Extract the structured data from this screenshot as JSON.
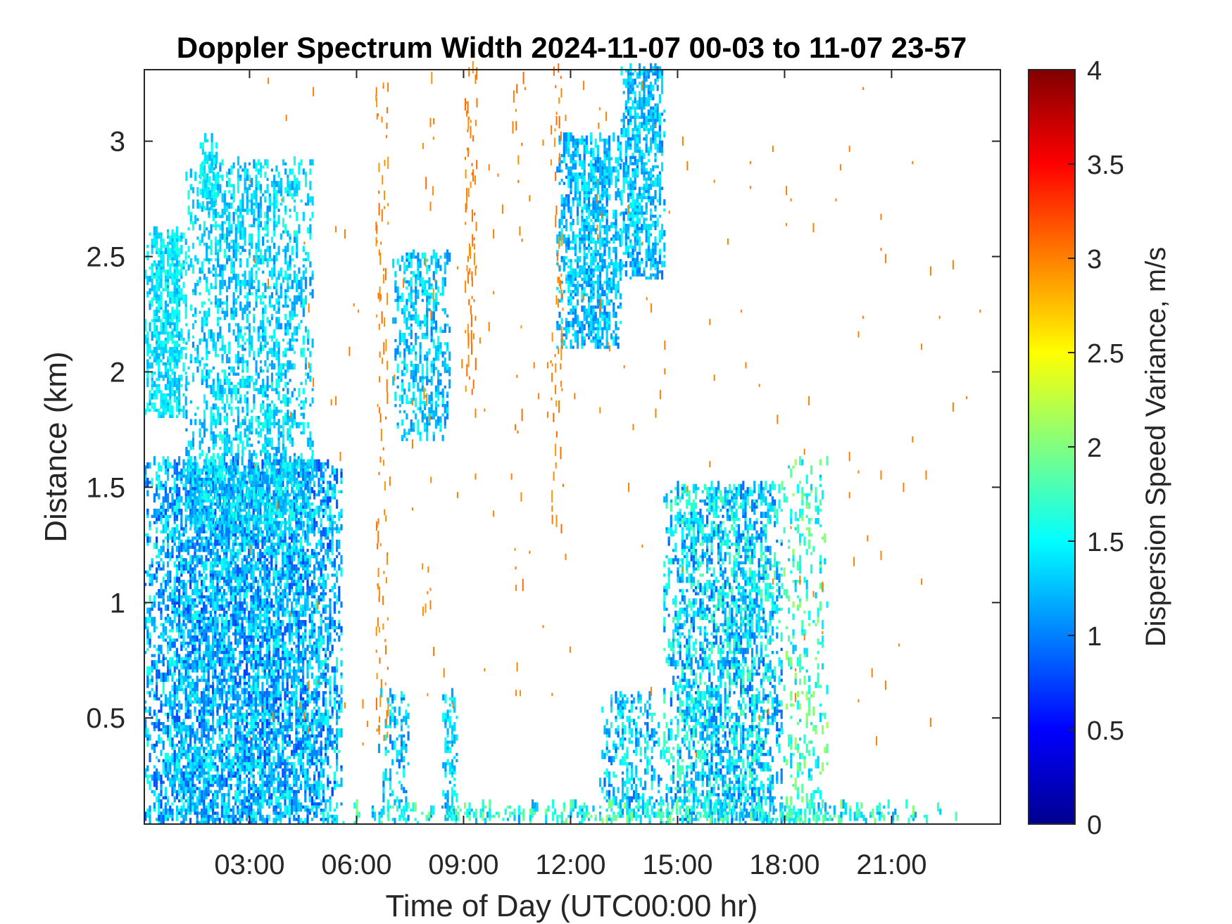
{
  "chart_data": {
    "type": "heatmap",
    "title": "Doppler Spectrum Width 2024-11-07 00-03 to 11-07 23-57",
    "xlabel": "Time of Day (UTC00:00 hr)",
    "ylabel": "Distance (km)",
    "xlim": [
      0.05,
      24.05
    ],
    "ylim": [
      0.04,
      3.31
    ],
    "x_ticks": [
      3,
      6,
      9,
      12,
      15,
      18,
      21
    ],
    "x_tick_labels": [
      "03:00",
      "06:00",
      "09:00",
      "12:00",
      "15:00",
      "18:00",
      "21:00"
    ],
    "y_ticks": [
      0.5,
      1,
      1.5,
      2,
      2.5,
      3
    ],
    "y_tick_labels": [
      "0.5",
      "1",
      "1.5",
      "2",
      "2.5",
      "3"
    ],
    "colorbar": {
      "label": "Dispersion Speed Variance, m/s",
      "range": [
        0,
        4
      ],
      "ticks": [
        0,
        0.5,
        1,
        1.5,
        2,
        2.5,
        3,
        3.5,
        4
      ],
      "tick_labels": [
        "0",
        "0.5",
        "1",
        "1.5",
        "2",
        "2.5",
        "3",
        "3.5",
        "4"
      ],
      "colormap": "jet",
      "colors": [
        "#00008f",
        "#0000ff",
        "#0080ff",
        "#00ffff",
        "#80ff80",
        "#ffff00",
        "#ff8000",
        "#ff0000",
        "#800000"
      ]
    },
    "grid": false,
    "regions": [
      {
        "x": [
          0.05,
          5.6
        ],
        "y": [
          0.04,
          1.6
        ],
        "value": 1.2,
        "spread": 0.45,
        "density": 0.55
      },
      {
        "x": [
          0.05,
          1.2
        ],
        "y": [
          1.8,
          2.6
        ],
        "value": 1.4,
        "spread": 0.25,
        "density": 0.45
      },
      {
        "x": [
          1.2,
          4.8
        ],
        "y": [
          1.3,
          2.9
        ],
        "value": 1.35,
        "spread": 0.3,
        "density": 0.28
      },
      {
        "x": [
          1.6,
          2.1
        ],
        "y": [
          2.7,
          3.0
        ],
        "value": 1.4,
        "spread": 0.2,
        "density": 0.35
      },
      {
        "x": [
          7.0,
          8.6
        ],
        "y": [
          1.7,
          2.5
        ],
        "value": 1.3,
        "spread": 0.3,
        "density": 0.3
      },
      {
        "x": [
          11.6,
          13.4
        ],
        "y": [
          2.1,
          3.0
        ],
        "value": 1.25,
        "spread": 0.3,
        "density": 0.45
      },
      {
        "x": [
          13.4,
          14.6
        ],
        "y": [
          2.4,
          3.3
        ],
        "value": 1.25,
        "spread": 0.3,
        "density": 0.45
      },
      {
        "x": [
          14.6,
          17.9
        ],
        "y": [
          0.04,
          1.5
        ],
        "value": 1.35,
        "spread": 0.5,
        "density": 0.42
      },
      {
        "x": [
          17.9,
          19.2
        ],
        "y": [
          0.04,
          1.6
        ],
        "value": 1.7,
        "spread": 0.45,
        "density": 0.14
      },
      {
        "x": [
          12.8,
          14.6
        ],
        "y": [
          0.04,
          0.6
        ],
        "value": 1.3,
        "spread": 0.4,
        "density": 0.25
      },
      {
        "x": [
          6.6,
          7.5
        ],
        "y": [
          0.04,
          0.6
        ],
        "value": 1.3,
        "spread": 0.35,
        "density": 0.18
      },
      {
        "x": [
          8.4,
          8.8
        ],
        "y": [
          0.04,
          0.6
        ],
        "value": 1.3,
        "spread": 0.3,
        "density": 0.3
      },
      {
        "x": [
          5.6,
          22.8
        ],
        "y": [
          0.04,
          0.12
        ],
        "value": 1.6,
        "spread": 0.5,
        "density": 0.25
      }
    ],
    "streaks": [
      {
        "x": 6.7,
        "y": [
          0.4,
          3.3
        ],
        "value": 3.0,
        "density": 0.45
      },
      {
        "x": 9.2,
        "y": [
          1.9,
          3.3
        ],
        "value": 3.0,
        "density": 0.55
      },
      {
        "x": 11.6,
        "y": [
          1.3,
          3.3
        ],
        "value": 3.0,
        "density": 0.45
      },
      {
        "x": 8.0,
        "y": [
          0.5,
          3.3
        ],
        "value": 3.0,
        "density": 0.12
      },
      {
        "x": 10.5,
        "y": [
          0.5,
          3.3
        ],
        "value": 3.0,
        "density": 0.1
      },
      {
        "x": 12.9,
        "y": [
          1.7,
          3.3
        ],
        "value": 3.0,
        "density": 0.1
      }
    ],
    "sparse_noise": {
      "x": [
        3.0,
        23.5
      ],
      "y": [
        0.3,
        3.3
      ],
      "value": 3.0,
      "density": 0.01
    }
  }
}
